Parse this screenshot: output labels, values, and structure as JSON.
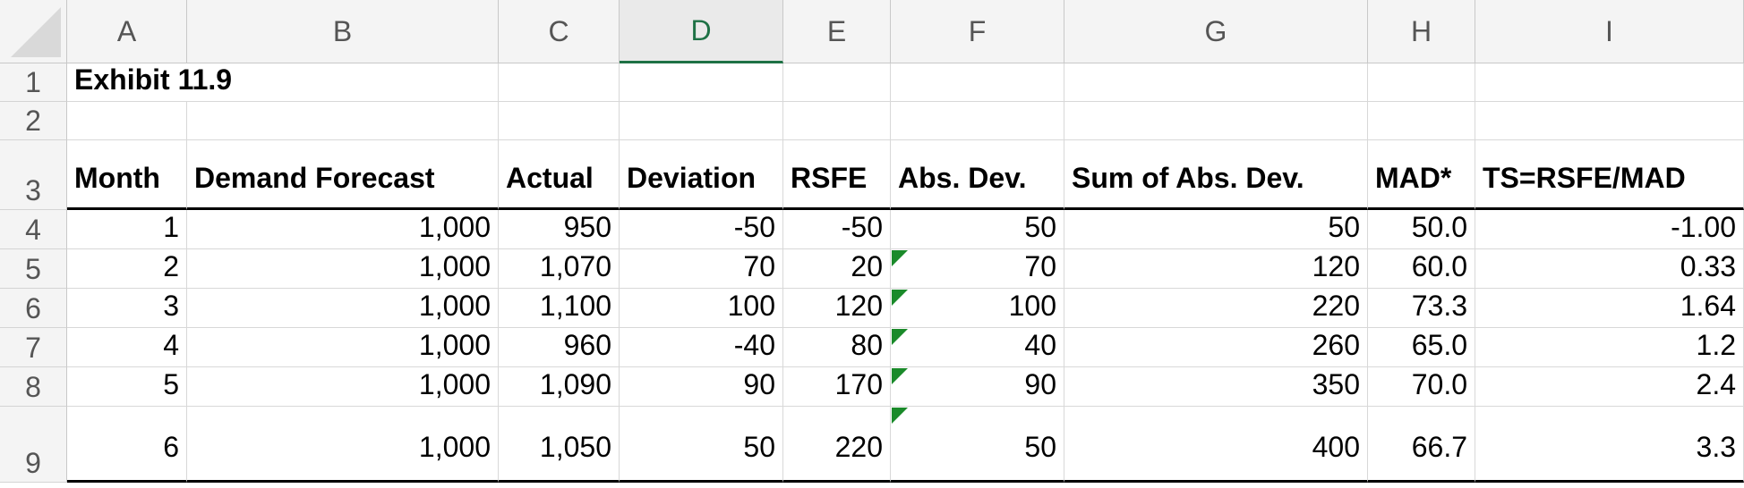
{
  "sheet": {
    "columns": [
      "A",
      "B",
      "C",
      "D",
      "E",
      "F",
      "G",
      "H",
      "I"
    ],
    "selected_column": "D",
    "rows": [
      "1",
      "2",
      "3",
      "4",
      "5",
      "6",
      "7",
      "8",
      "9"
    ],
    "title": "Exhibit 11.9",
    "headers": [
      "Month",
      "Demand Forecast",
      "Actual",
      "Deviation",
      "RSFE",
      "Abs. Dev.",
      "Sum of Abs. Dev.",
      "MAD*",
      "TS=RSFE/MAD"
    ],
    "data": [
      [
        "1",
        "1,000",
        "950",
        "-50",
        "-50",
        "50",
        "50",
        "50.0",
        "-1.00"
      ],
      [
        "2",
        "1,000",
        "1,070",
        "70",
        "20",
        "70",
        "120",
        "60.0",
        "0.33"
      ],
      [
        "3",
        "1,000",
        "1,100",
        "100",
        "120",
        "100",
        "220",
        "73.3",
        "1.64"
      ],
      [
        "4",
        "1,000",
        "960",
        "-40",
        "80",
        "40",
        "260",
        "65.0",
        "1.2"
      ],
      [
        "5",
        "1,000",
        "1,090",
        "90",
        "170",
        "90",
        "350",
        "70.0",
        "2.4"
      ],
      [
        "6",
        "1,000",
        "1,050",
        "50",
        "220",
        "50",
        "400",
        "66.7",
        "3.3"
      ]
    ],
    "error_flag_rows": [
      "5",
      "6",
      "7",
      "8",
      "9"
    ],
    "error_flag_column": "F",
    "accent_color": "#1e7145",
    "flag_color": "#1a8a2a"
  }
}
